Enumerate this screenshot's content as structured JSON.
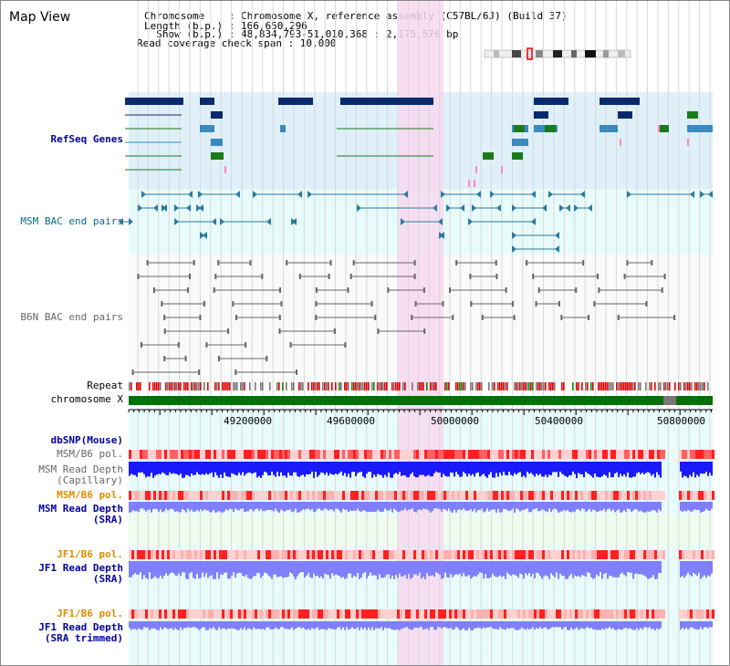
{
  "window": {
    "title": "Map View"
  },
  "header": {
    "chromosome_line": "Chromosome    : Chromosome X, reference assembly (C57BL/6J) (Build 37)",
    "length_line": "Length (b.p.) : 166,650,296",
    "show_line": "  Show (b.p.) : 48,834,793-51,010,368 : 2,175,576 bp",
    "coverage_line": "Read coverage check span : 10,000"
  },
  "tracks": {
    "refseq": "RefSeq Genes",
    "msm_bac": "MSM BAC end pairs",
    "b6n_bac": "B6N BAC end pairs",
    "repeat": "Repeat",
    "chromosome": "chromosome X",
    "dbsnp": "dbSNP(Mouse)",
    "msm_b6_pol_cap": "MSM/B6 pol.",
    "msm_read_depth_cap_1": "MSM Read Depth",
    "msm_read_depth_cap_2": "(Capillary)",
    "msm_b6_pol_sra": "MSM/B6 pol.",
    "msm_read_depth_sra_1": "MSM Read Depth",
    "msm_read_depth_sra_2": "(SRA)",
    "jf1_b6_pol_sra": "JF1/B6 pol.",
    "jf1_read_depth_sra_1": "JF1 Read Depth",
    "jf1_read_depth_sra_2": "(SRA)",
    "jf1_b6_pol_trim": "JF1/B6 pol.",
    "jf1_read_depth_trim_1": "JF1 Read Depth",
    "jf1_read_depth_trim_2": "(SRA trimmed)"
  },
  "axis": {
    "ticks": [
      "49200000",
      "49600000",
      "50000000",
      "50400000",
      "50800000"
    ]
  },
  "colors": {
    "refseq_bg": "#dff0fa",
    "msm_bac_bg": "#e8fbfb",
    "highlight": "#f8d8f0",
    "chrom_bar": "#0a6e0a",
    "depth_dark": "#1a1aff",
    "depth_light": "#8080ff"
  }
}
